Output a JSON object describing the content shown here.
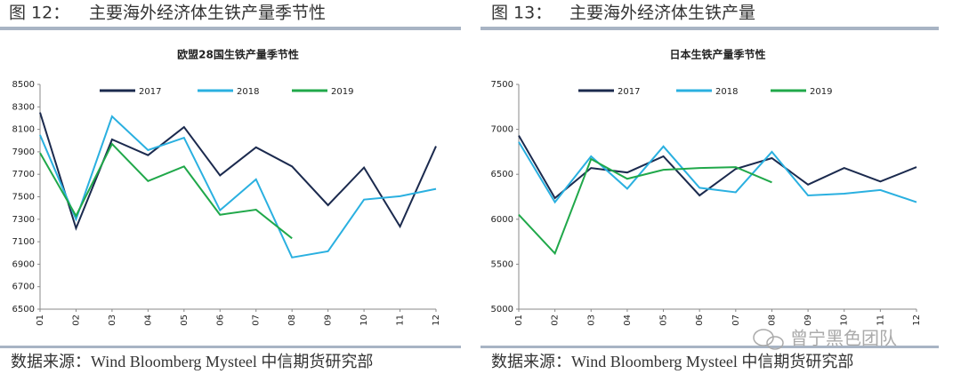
{
  "figures": [
    {
      "label": "图 12：",
      "caption": "主要海外经济体生铁产量季节性"
    },
    {
      "label": "图 13：",
      "caption": "主要海外经济体生铁产量"
    }
  ],
  "source": [
    "数据来源：Wind Bloomberg Mysteel 中信期货研究部",
    "数据来源：Wind Bloomberg Mysteel 中信期货研究部"
  ],
  "watermark": "曾宁黑色团队",
  "chart_data": [
    {
      "type": "line",
      "title": "欧盟28国生铁产量季节性",
      "categories": [
        "01",
        "02",
        "03",
        "04",
        "05",
        "06",
        "07",
        "08",
        "09",
        "10",
        "11",
        "12"
      ],
      "ylim": [
        6500,
        8500
      ],
      "yticks": [
        6500,
        6700,
        6900,
        7100,
        7300,
        7500,
        7700,
        7900,
        8100,
        8300,
        8500
      ],
      "series": [
        {
          "name": "2017",
          "color": "#1b2a4e",
          "values": [
            8250,
            7220,
            8010,
            7870,
            8120,
            7690,
            7940,
            7770,
            7425,
            7760,
            7235,
            7950
          ]
        },
        {
          "name": "2018",
          "color": "#2ab0e0",
          "values": [
            8050,
            7300,
            8215,
            7915,
            8025,
            7380,
            7655,
            6960,
            7015,
            7475,
            7505,
            7570
          ]
        },
        {
          "name": "2019",
          "color": "#20a84a",
          "values": [
            7890,
            7330,
            7970,
            7640,
            7770,
            7340,
            7385,
            7130,
            null,
            null,
            null,
            null
          ]
        }
      ]
    },
    {
      "type": "line",
      "title": "日本生铁产量季节性",
      "categories": [
        "01",
        "02",
        "03",
        "04",
        "05",
        "06",
        "07",
        "08",
        "09",
        "10",
        "11",
        "12"
      ],
      "ylim": [
        5000,
        7500
      ],
      "yticks": [
        5000,
        5500,
        6000,
        6500,
        7000,
        7500
      ],
      "series": [
        {
          "name": "2017",
          "color": "#1b2a4e",
          "values": [
            6930,
            6235,
            6570,
            6520,
            6700,
            6265,
            6560,
            6680,
            6385,
            6570,
            6420,
            6580
          ]
        },
        {
          "name": "2018",
          "color": "#2ab0e0",
          "values": [
            6860,
            6190,
            6700,
            6340,
            6810,
            6350,
            6300,
            6750,
            6265,
            6285,
            6325,
            6190
          ]
        },
        {
          "name": "2019",
          "color": "#20a84a",
          "values": [
            6050,
            5620,
            6670,
            6450,
            6550,
            6570,
            6580,
            6410,
            null,
            null,
            null,
            null
          ]
        }
      ]
    }
  ]
}
